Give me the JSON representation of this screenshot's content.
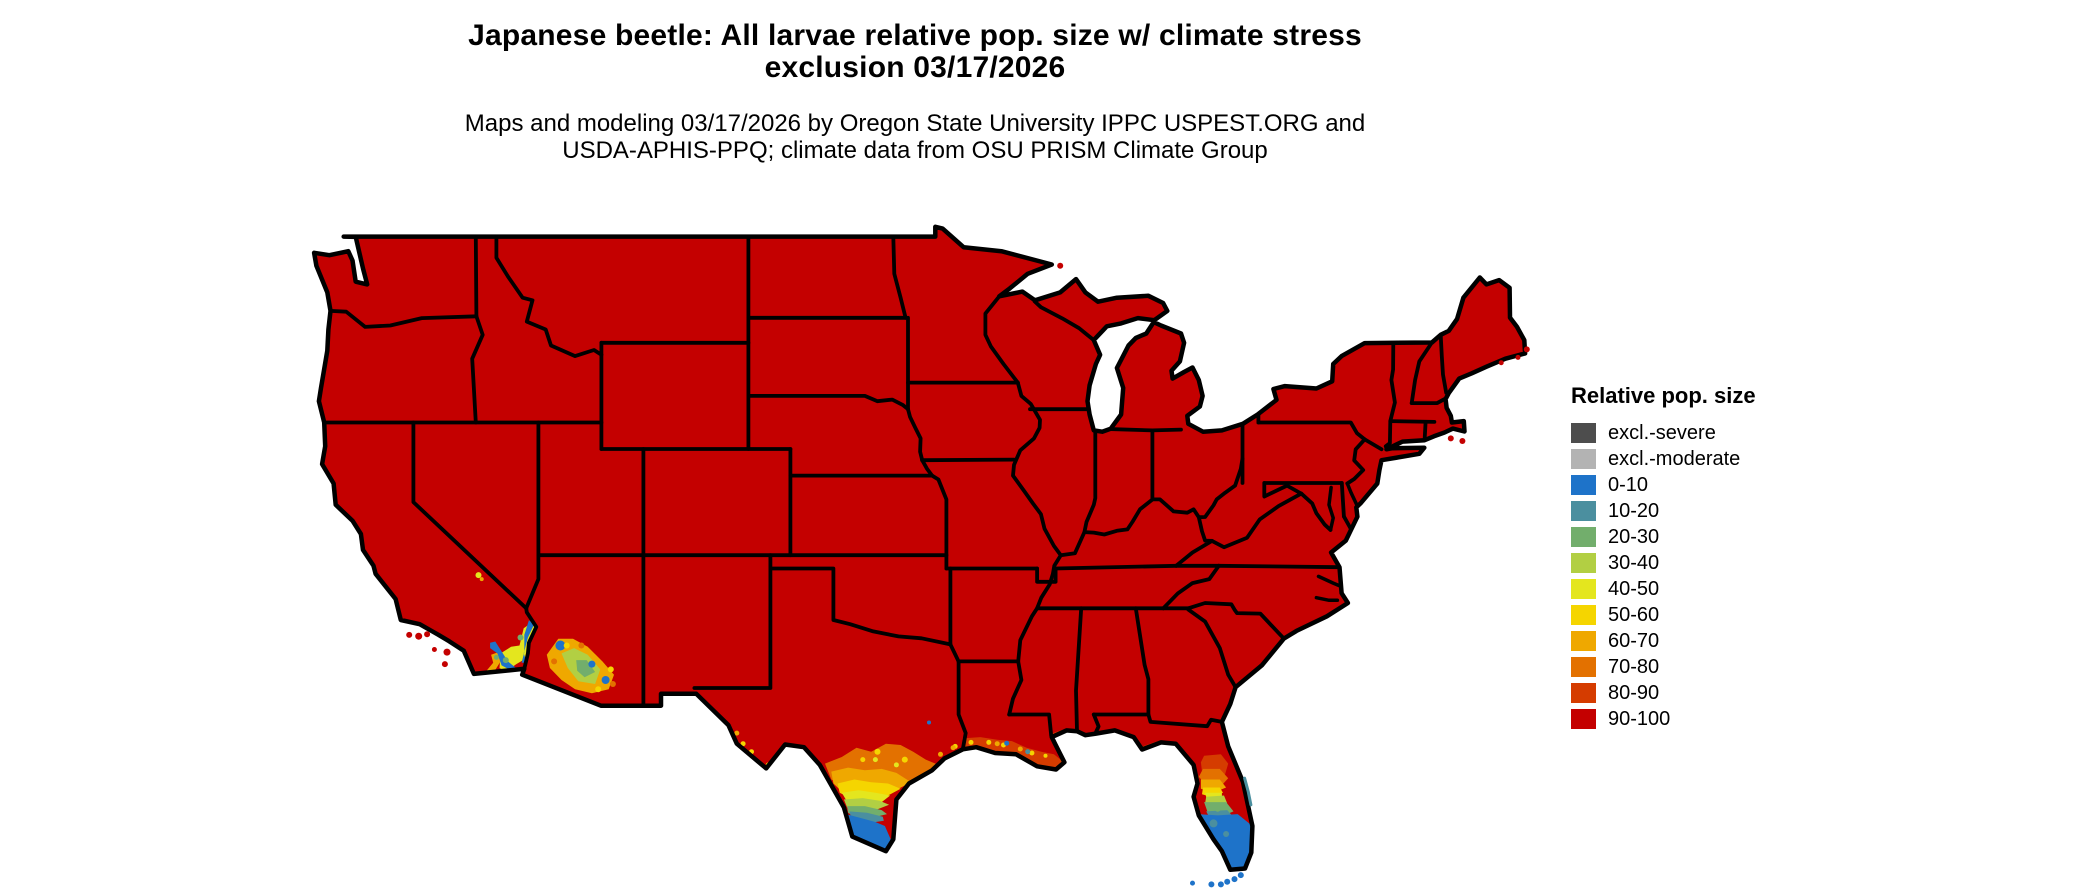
{
  "header": {
    "title_line1": "Japanese beetle: All larvae relative pop. size w/ climate stress",
    "title_line2": "exclusion 03/17/2026",
    "subtitle_line1": "Maps and modeling 03/17/2026 by Oregon State University IPPC USPEST.ORG and",
    "subtitle_line2": "USDA-APHIS-PPQ; climate data from OSU PRISM Climate Group"
  },
  "legend": {
    "title": "Relative pop. size",
    "items": [
      {
        "id": "sev",
        "label": "excl.-severe",
        "color": "#4D4D4D"
      },
      {
        "id": "mod",
        "label": "excl.-moderate",
        "color": "#B3B3B3"
      },
      {
        "id": "v0",
        "label": "0-10",
        "color": "#1E73C9"
      },
      {
        "id": "v10",
        "label": "10-20",
        "color": "#4B8F9F"
      },
      {
        "id": "v20",
        "label": "20-30",
        "color": "#72AE6C"
      },
      {
        "id": "v30",
        "label": "30-40",
        "color": "#B2CF43"
      },
      {
        "id": "v40",
        "label": "40-50",
        "color": "#E4E61E"
      },
      {
        "id": "v50",
        "label": "50-60",
        "color": "#F5D500"
      },
      {
        "id": "v60",
        "label": "60-70",
        "color": "#EFA800"
      },
      {
        "id": "v70",
        "label": "70-80",
        "color": "#E37100"
      },
      {
        "id": "v80",
        "label": "80-90",
        "color": "#D53C00"
      },
      {
        "id": "v90",
        "label": "90-100",
        "color": "#C40000"
      }
    ]
  },
  "map": {
    "region": "Contiguous United States",
    "border_color": "#000000",
    "background_color": "#FFFFFF",
    "dominant_class": "90-100"
  },
  "chart_data": {
    "type": "choropleth_map",
    "region": "Contiguous United States",
    "title": "Japanese beetle: All larvae relative pop. size w/ climate stress exclusion 03/17/2026",
    "date_shown": "03/17/2026",
    "legend_title": "Relative pop. size",
    "classes": [
      "excl.-severe",
      "excl.-moderate",
      "0-10",
      "10-20",
      "20-30",
      "30-40",
      "40-50",
      "50-60",
      "60-70",
      "70-80",
      "80-90",
      "90-100"
    ],
    "class_colors": [
      "#4D4D4D",
      "#B3B3B3",
      "#1E73C9",
      "#4B8F9F",
      "#72AE6C",
      "#B2CF43",
      "#E4E61E",
      "#F5D500",
      "#EFA800",
      "#E37100",
      "#D53C00",
      "#C40000"
    ],
    "dominant_class": "90-100",
    "notable_areas": [
      {
        "area": "southern Texas (Rio Grande Valley north to Corpus Christi)",
        "values": "0-10 at the tip grading north through 10-80"
      },
      {
        "area": "southern Florida peninsula and Keys",
        "values": "0-10 in the south grading north through 10-80 in central Florida"
      },
      {
        "area": "southeastern California (Imperial Valley / lower Colorado River) and southern Arizona",
        "values": "mixed 0-80 mottling"
      },
      {
        "area": "Louisiana and Gulf coastal fringe",
        "values": "mostly 80-90 with scattered 40-70 and isolated 0-20 specks"
      }
    ]
  }
}
